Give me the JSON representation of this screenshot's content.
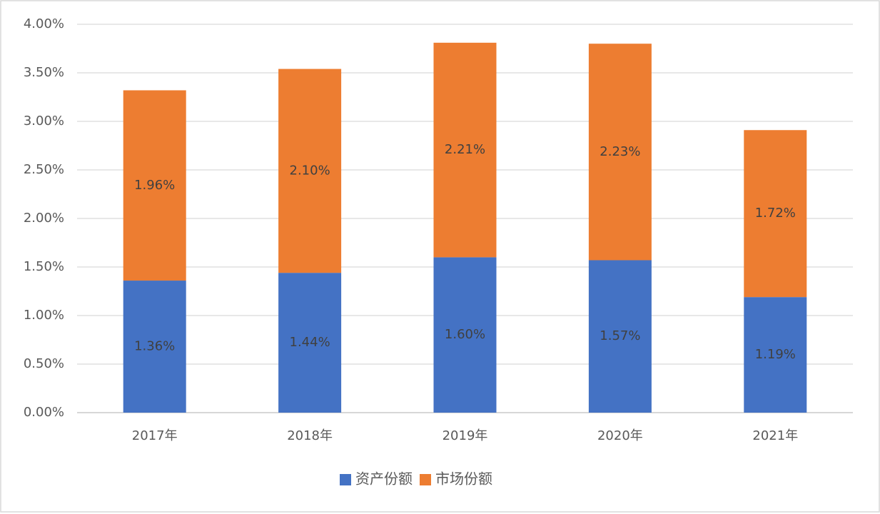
{
  "chart_data": {
    "type": "stacked_bar",
    "categories": [
      "2017年",
      "2018年",
      "2019年",
      "2020年",
      "2021年"
    ],
    "series": [
      {
        "name": "资产份额",
        "color": "#4472c4",
        "values": [
          1.36,
          1.44,
          1.6,
          1.57,
          1.19
        ],
        "value_labels": [
          "1.36%",
          "1.44%",
          "1.60%",
          "1.57%",
          "1.19%"
        ]
      },
      {
        "name": "市场份额",
        "color": "#ed7d31",
        "values": [
          1.96,
          2.1,
          2.21,
          2.23,
          1.72
        ],
        "value_labels": [
          "1.96%",
          "2.10%",
          "2.21%",
          "2.23%",
          "1.72%"
        ]
      }
    ],
    "ylim": [
      0,
      4
    ],
    "yticks": [
      {
        "value": 0,
        "label": "0.00%"
      },
      {
        "value": 0.5,
        "label": "0.50%"
      },
      {
        "value": 1,
        "label": "1.00%"
      },
      {
        "value": 1.5,
        "label": "1.50%"
      },
      {
        "value": 2,
        "label": "2.00%"
      },
      {
        "value": 2.5,
        "label": "2.50%"
      },
      {
        "value": 3,
        "label": "3.00%"
      },
      {
        "value": 3.5,
        "label": "3.50%"
      },
      {
        "value": 4,
        "label": "4.00%"
      }
    ],
    "grid": true,
    "legend": "bottom"
  }
}
